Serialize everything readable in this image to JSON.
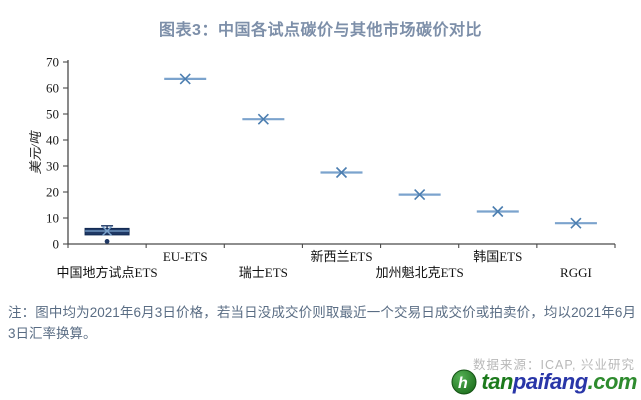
{
  "title": "图表3：中国各试点碳价与其他市场碳价对比",
  "chart_data": {
    "type": "scatter",
    "title": "图表3：中国各试点碳价与其他市场碳价对比",
    "ylabel": "美元/吨",
    "xlabel": "",
    "ylim": [
      0,
      70
    ],
    "yticks": [
      0,
      10,
      20,
      30,
      40,
      50,
      60,
      70
    ],
    "grid": false,
    "legend": "none",
    "marker": "x-with-horizontal-line",
    "categories": [
      "中国地方试点ETS",
      "EU-ETS",
      "瑞士ETS",
      "新西兰ETS",
      "加州魁北克ETS",
      "韩国ETS",
      "RGGI"
    ],
    "series": [
      {
        "name": "中国地方试点ETS",
        "type": "boxplot",
        "q1": 3.5,
        "median": 5,
        "q3": 6,
        "whisker_high": 7,
        "outliers": [
          1
        ]
      },
      {
        "name": "EU-ETS",
        "type": "point",
        "value": 63.5
      },
      {
        "name": "瑞士ETS",
        "type": "point",
        "value": 48
      },
      {
        "name": "新西兰ETS",
        "type": "point",
        "value": 27.5
      },
      {
        "name": "加州魁北克ETS",
        "type": "point",
        "value": 19
      },
      {
        "name": "韩国ETS",
        "type": "point",
        "value": 12.5
      },
      {
        "name": "RGGI",
        "type": "point",
        "value": 8
      }
    ]
  },
  "note": "注：图中均为2021年6月3日价格，若当日没成交价则取最近一个交易日成交价或拍卖价，均以2021年6月3日汇率换算。",
  "source": "数据来源：ICAP, 兴业研究",
  "logo": {
    "tan": "tan",
    "paifang": "paifang",
    "com": ".com"
  },
  "colors": {
    "title": "#7d8fa9",
    "note": "#5a6d84",
    "source_gray": "#b8b8b8",
    "axis": "#4a4a4a",
    "marker_blue": "#7ba3cd",
    "marker_x": "#4c7eb0",
    "box_navy": "#1f3864",
    "box_stroke": "#122a52",
    "logo_green_dark": "#1c7a1c",
    "logo_blue": "#2936a8",
    "logo_green": "#2e8b2e"
  }
}
